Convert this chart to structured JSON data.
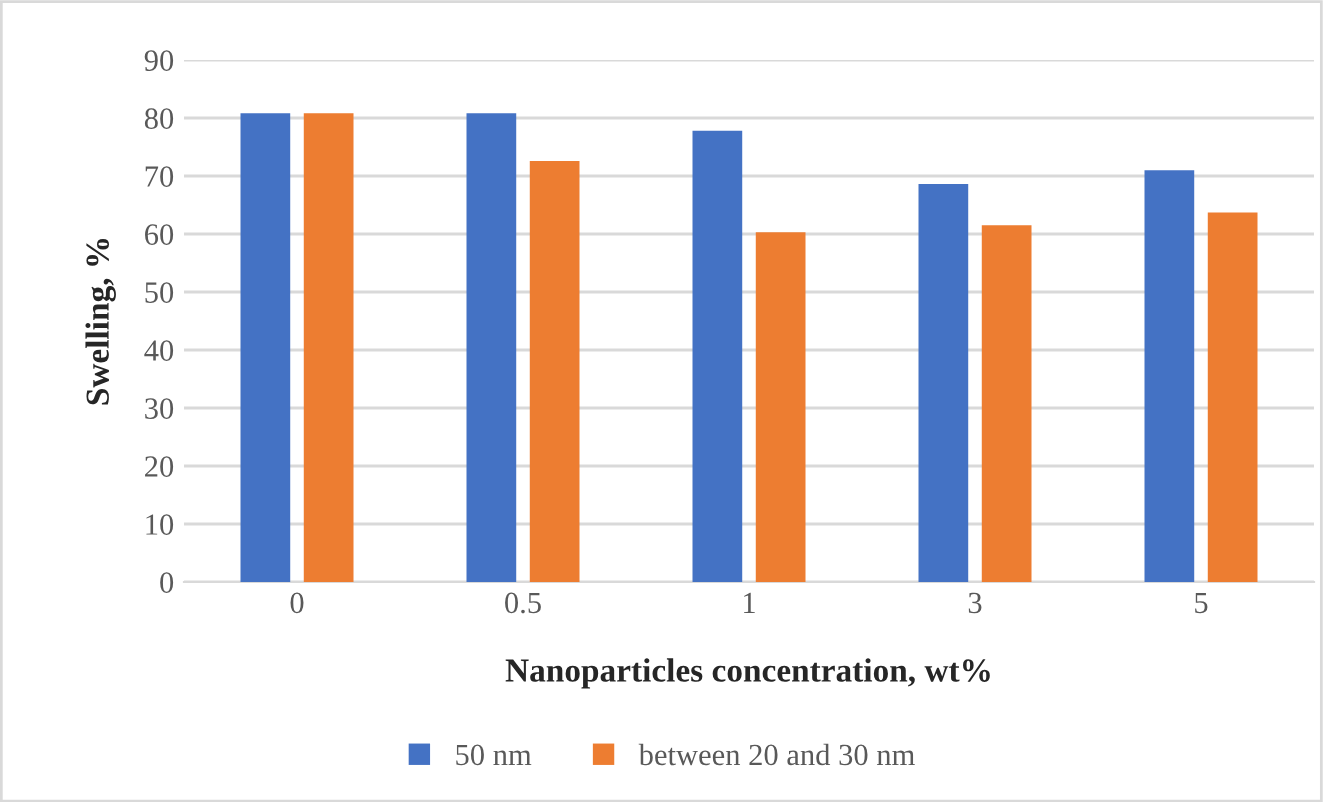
{
  "chart_data": {
    "type": "bar",
    "xlabel": "Nanoparticles concentration, wt%",
    "ylabel": "Swelling, %",
    "categories": [
      "0",
      "0.5",
      "1",
      "3",
      "5"
    ],
    "series": [
      {
        "name": "50 nm",
        "color": "#4472c4",
        "values": [
          80.8,
          80.8,
          77.8,
          68.6,
          71.0
        ]
      },
      {
        "name": "between 20 and 30 nm",
        "color": "#ed7d31",
        "values": [
          80.8,
          72.6,
          60.3,
          61.5,
          63.7
        ]
      }
    ],
    "ylim": [
      0,
      90
    ],
    "yticks": [
      0,
      10,
      20,
      30,
      40,
      50,
      60,
      70,
      80,
      90
    ],
    "grid": "y",
    "legend": "bottom"
  }
}
